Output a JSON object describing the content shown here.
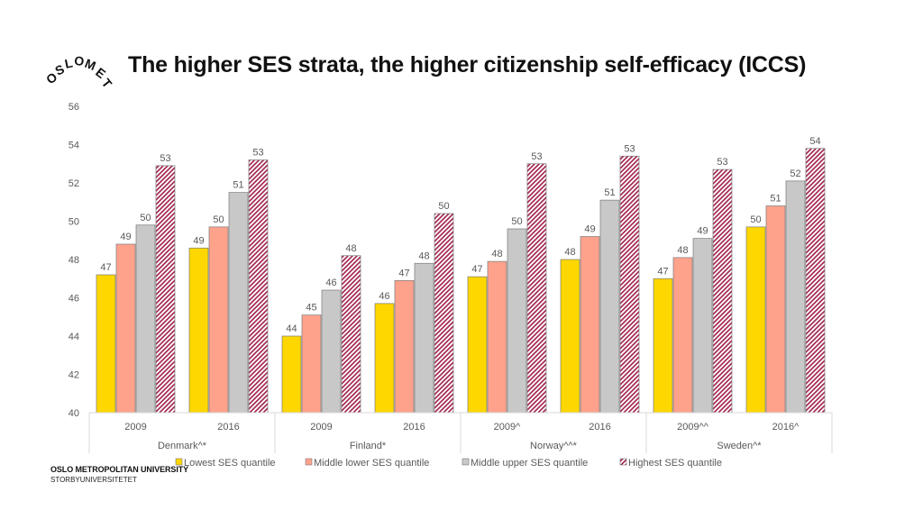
{
  "page": {
    "title": "The higher SES strata, the higher citizenship self-efficacy (ICCS)",
    "logo_text": "OSLOMET",
    "footer_line1": "OSLO METROPOLITAN UNIVERSITY",
    "footer_line2": "STORBYUNIVERSITETET"
  },
  "chart_data": {
    "type": "bar",
    "title": "The higher SES strata, the higher citizenship self-efficacy (ICCS)",
    "xlabel": "",
    "ylabel": "",
    "ylim": [
      40,
      56
    ],
    "yticks": [
      40,
      42,
      44,
      46,
      48,
      50,
      52,
      54,
      56
    ],
    "grid": false,
    "legend_position": "bottom",
    "groups": [
      {
        "label": "Denmark^*",
        "categories": [
          "2009",
          "2016"
        ]
      },
      {
        "label": "Finland*",
        "categories": [
          "2009",
          "2016"
        ]
      },
      {
        "label": "Norway^^*",
        "categories": [
          "2009^",
          "2016"
        ]
      },
      {
        "label": "Sweden^*",
        "categories": [
          "2009^^",
          "2016^"
        ]
      }
    ],
    "categories": [
      "2009",
      "2016",
      "2009",
      "2016",
      "2009^",
      "2016",
      "2009^^",
      "2016^"
    ],
    "series": [
      {
        "name": "Lowest SES quantile",
        "color": "#FFD700",
        "values": [
          47.2,
          48.6,
          44.0,
          45.7,
          47.1,
          48.0,
          47.0,
          49.7
        ],
        "labels": [
          "47",
          "49",
          "44",
          "46",
          "47",
          "48",
          "47",
          "50"
        ]
      },
      {
        "name": "Middle lower SES quantile",
        "color": "#FFA28C",
        "values": [
          48.8,
          49.7,
          45.1,
          46.9,
          47.9,
          49.2,
          48.1,
          50.8
        ],
        "labels": [
          "49",
          "50",
          "45",
          "47",
          "48",
          "49",
          "48",
          "51"
        ]
      },
      {
        "name": "Middle upper SES quantile",
        "color": "#C8C8C8",
        "values": [
          49.8,
          51.5,
          46.4,
          47.8,
          49.6,
          51.1,
          49.1,
          52.1
        ],
        "labels": [
          "50",
          "51",
          "46",
          "48",
          "50",
          "51",
          "49",
          "52"
        ]
      },
      {
        "name": "Highest SES quantile",
        "color": "#A0204A",
        "values": [
          52.9,
          53.2,
          48.2,
          50.4,
          53.0,
          53.4,
          52.7,
          53.8
        ],
        "labels": [
          "53",
          "53",
          "48",
          "50",
          "53",
          "53",
          "53",
          "54"
        ]
      }
    ]
  }
}
